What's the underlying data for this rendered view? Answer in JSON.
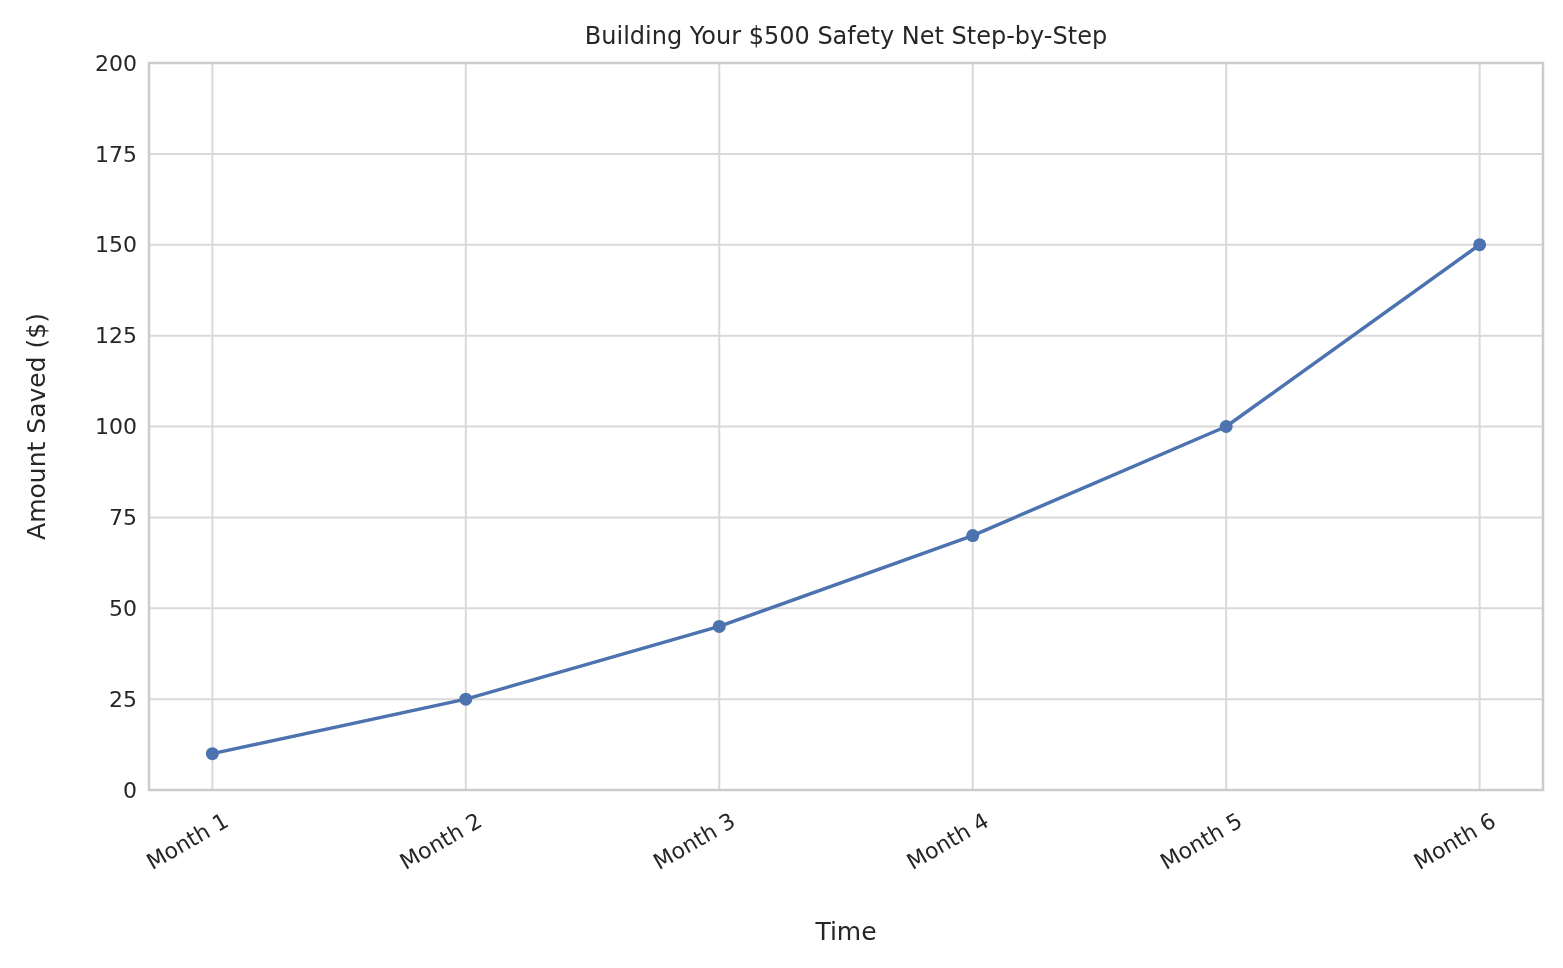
{
  "chart_data": {
    "type": "line",
    "title": "Building Your $500 Safety Net Step-by-Step",
    "xlabel": "Time",
    "ylabel": "Amount Saved ($)",
    "categories": [
      "Month 1",
      "Month 2",
      "Month 3",
      "Month 4",
      "Month 5",
      "Month 6"
    ],
    "series": [
      {
        "color": "#4c72b0",
        "values": [
          10,
          25,
          45,
          70,
          100,
          150
        ]
      }
    ],
    "ylim": [
      0,
      200
    ],
    "yticks": [
      0,
      25,
      50,
      75,
      100,
      125,
      150,
      175,
      200
    ],
    "grid": true,
    "marker": "circle",
    "line_style": "solid"
  }
}
